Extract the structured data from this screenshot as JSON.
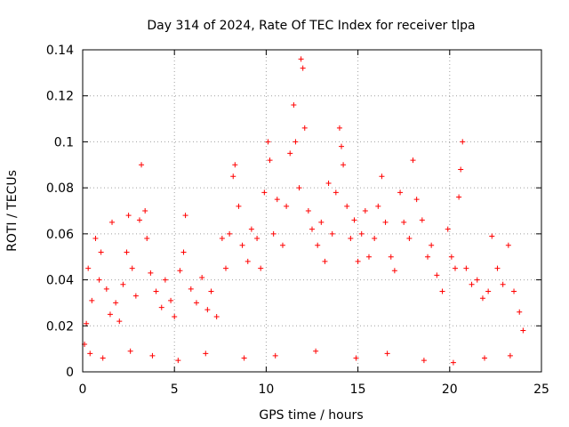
{
  "chart_data": {
    "type": "scatter",
    "title": "Day 314 of 2024, Rate Of TEC Index for receiver tlpa",
    "xlabel": "GPS time / hours",
    "ylabel": "ROTI / TECUs",
    "xlim": [
      0,
      25
    ],
    "ylim": [
      0,
      0.14
    ],
    "xticks": [
      0,
      5,
      10,
      15,
      20,
      25
    ],
    "yticks": [
      0,
      0.02,
      0.04,
      0.06,
      0.08,
      0.1,
      0.12,
      0.14
    ],
    "xtick_labels": [
      "0",
      "5",
      "10",
      "15",
      "20",
      "25"
    ],
    "ytick_labels": [
      "0",
      "0.02",
      "0.04",
      "0.06",
      "0.08",
      "0.1",
      "0.12",
      "0.14"
    ],
    "grid": true,
    "marker": "+",
    "color": "#ff0000",
    "series": [
      {
        "points": [
          [
            0.1,
            0.012
          ],
          [
            0.2,
            0.021
          ],
          [
            0.3,
            0.045
          ],
          [
            0.5,
            0.031
          ],
          [
            0.7,
            0.058
          ],
          [
            0.9,
            0.04
          ],
          [
            1.0,
            0.052
          ],
          [
            1.3,
            0.036
          ],
          [
            1.5,
            0.025
          ],
          [
            1.6,
            0.065
          ],
          [
            1.8,
            0.03
          ],
          [
            2.0,
            0.022
          ],
          [
            2.2,
            0.038
          ],
          [
            2.4,
            0.052
          ],
          [
            2.5,
            0.068
          ],
          [
            2.7,
            0.045
          ],
          [
            2.9,
            0.033
          ],
          [
            3.1,
            0.066
          ],
          [
            3.2,
            0.09
          ],
          [
            3.4,
            0.07
          ],
          [
            3.5,
            0.058
          ],
          [
            3.7,
            0.043
          ],
          [
            4.0,
            0.035
          ],
          [
            4.3,
            0.028
          ],
          [
            4.5,
            0.04
          ],
          [
            4.8,
            0.031
          ],
          [
            5.0,
            0.024
          ],
          [
            5.3,
            0.044
          ],
          [
            5.5,
            0.052
          ],
          [
            5.6,
            0.068
          ],
          [
            5.9,
            0.036
          ],
          [
            6.2,
            0.03
          ],
          [
            6.5,
            0.041
          ],
          [
            6.8,
            0.027
          ],
          [
            7.0,
            0.035
          ],
          [
            7.3,
            0.024
          ],
          [
            7.6,
            0.058
          ],
          [
            7.8,
            0.045
          ],
          [
            8.0,
            0.06
          ],
          [
            8.2,
            0.085
          ],
          [
            8.3,
            0.09
          ],
          [
            8.5,
            0.072
          ],
          [
            8.7,
            0.055
          ],
          [
            9.0,
            0.048
          ],
          [
            9.2,
            0.062
          ],
          [
            9.5,
            0.058
          ],
          [
            9.7,
            0.045
          ],
          [
            9.9,
            0.078
          ],
          [
            10.1,
            0.1
          ],
          [
            10.2,
            0.092
          ],
          [
            10.4,
            0.06
          ],
          [
            10.6,
            0.075
          ],
          [
            10.9,
            0.055
          ],
          [
            11.1,
            0.072
          ],
          [
            11.3,
            0.095
          ],
          [
            11.5,
            0.116
          ],
          [
            11.6,
            0.1
          ],
          [
            11.8,
            0.08
          ],
          [
            11.9,
            0.136
          ],
          [
            12.0,
            0.132
          ],
          [
            12.1,
            0.106
          ],
          [
            12.3,
            0.07
          ],
          [
            12.5,
            0.062
          ],
          [
            12.8,
            0.055
          ],
          [
            13.0,
            0.065
          ],
          [
            13.2,
            0.048
          ],
          [
            13.4,
            0.082
          ],
          [
            13.6,
            0.06
          ],
          [
            13.8,
            0.078
          ],
          [
            14.0,
            0.106
          ],
          [
            14.1,
            0.098
          ],
          [
            14.2,
            0.09
          ],
          [
            14.4,
            0.072
          ],
          [
            14.6,
            0.058
          ],
          [
            14.8,
            0.066
          ],
          [
            15.0,
            0.048
          ],
          [
            15.2,
            0.06
          ],
          [
            15.4,
            0.07
          ],
          [
            15.6,
            0.05
          ],
          [
            15.9,
            0.058
          ],
          [
            16.1,
            0.072
          ],
          [
            16.3,
            0.085
          ],
          [
            16.5,
            0.065
          ],
          [
            16.8,
            0.05
          ],
          [
            17.0,
            0.044
          ],
          [
            17.3,
            0.078
          ],
          [
            17.5,
            0.065
          ],
          [
            17.8,
            0.058
          ],
          [
            18.0,
            0.092
          ],
          [
            18.2,
            0.075
          ],
          [
            18.5,
            0.066
          ],
          [
            18.8,
            0.05
          ],
          [
            19.0,
            0.055
          ],
          [
            19.3,
            0.042
          ],
          [
            19.6,
            0.035
          ],
          [
            19.9,
            0.062
          ],
          [
            20.1,
            0.05
          ],
          [
            20.3,
            0.045
          ],
          [
            20.5,
            0.076
          ],
          [
            20.7,
            0.1
          ],
          [
            20.6,
            0.088
          ],
          [
            20.9,
            0.045
          ],
          [
            21.2,
            0.038
          ],
          [
            21.5,
            0.04
          ],
          [
            21.8,
            0.032
          ],
          [
            22.1,
            0.035
          ],
          [
            22.3,
            0.059
          ],
          [
            22.6,
            0.045
          ],
          [
            22.9,
            0.038
          ],
          [
            23.2,
            0.055
          ],
          [
            23.5,
            0.035
          ],
          [
            23.8,
            0.026
          ],
          [
            24.0,
            0.018
          ],
          [
            0.4,
            0.008
          ],
          [
            1.1,
            0.006
          ],
          [
            2.6,
            0.009
          ],
          [
            3.8,
            0.007
          ],
          [
            5.2,
            0.005
          ],
          [
            6.7,
            0.008
          ],
          [
            8.8,
            0.006
          ],
          [
            10.5,
            0.007
          ],
          [
            12.7,
            0.009
          ],
          [
            14.9,
            0.006
          ],
          [
            16.6,
            0.008
          ],
          [
            18.6,
            0.005
          ],
          [
            20.2,
            0.004
          ],
          [
            21.9,
            0.006
          ],
          [
            23.3,
            0.007
          ]
        ]
      }
    ]
  }
}
